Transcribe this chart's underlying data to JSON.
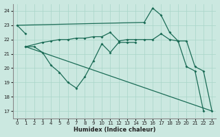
{
  "xlabel": "Humidex (Indice chaleur)",
  "bg_color": "#cbe8e0",
  "grid_color": "#a8d5c8",
  "line_color": "#1a6b55",
  "xlim": [
    -0.5,
    23.5
  ],
  "ylim": [
    16.5,
    24.5
  ],
  "yticks": [
    17,
    18,
    19,
    20,
    21,
    22,
    23,
    24
  ],
  "xticks": [
    0,
    1,
    2,
    3,
    4,
    5,
    6,
    7,
    8,
    9,
    10,
    11,
    12,
    13,
    14,
    15,
    16,
    17,
    18,
    19,
    20,
    21,
    22,
    23
  ],
  "lines": [
    {
      "segments": [
        {
          "x": [
            0,
            1,
            15
          ],
          "y": [
            23.0,
            22.4,
            23.2
          ],
          "markers": [
            true,
            true,
            false
          ]
        }
      ]
    },
    {
      "segments": [
        {
          "x": [
            1,
            2,
            3,
            4,
            5,
            6,
            7,
            8,
            9,
            10,
            11,
            12,
            13,
            14
          ],
          "y": [
            21.5,
            21.5,
            21.1,
            20.2,
            19.7,
            19.0,
            18.6,
            19.4,
            20.5,
            21.7,
            21.1,
            21.8,
            21.8,
            21.8
          ],
          "markers": [
            true,
            true,
            true,
            true,
            true,
            true,
            true,
            true,
            true,
            true,
            true,
            true,
            true,
            true
          ]
        }
      ]
    },
    {
      "segments": [
        {
          "x": [
            1,
            3,
            4,
            5,
            6,
            7,
            8,
            9,
            10,
            11,
            12,
            13,
            14,
            15,
            16,
            17,
            18,
            19
          ],
          "y": [
            21.5,
            21.8,
            21.9,
            22.0,
            22.0,
            22.1,
            22.1,
            22.2,
            22.2,
            22.5,
            21.9,
            22.0,
            22.0,
            22.0,
            22.0,
            22.4,
            22.0,
            21.9
          ],
          "markers": [
            true,
            true,
            true,
            true,
            true,
            true,
            true,
            true,
            true,
            true,
            true,
            true,
            true,
            true,
            true,
            true,
            true,
            true
          ]
        }
      ]
    },
    {
      "segments": [
        {
          "x": [
            15,
            16,
            17,
            18,
            19,
            20,
            21,
            22
          ],
          "y": [
            23.2,
            24.2,
            23.7,
            22.5,
            21.9,
            20.1,
            19.8,
            17.0
          ],
          "markers": [
            true,
            true,
            true,
            true,
            true,
            true,
            true,
            true
          ]
        }
      ]
    },
    {
      "segments": [
        {
          "x": [
            1,
            23
          ],
          "y": [
            21.5,
            17.0
          ],
          "markers": [
            false,
            false
          ]
        }
      ]
    },
    {
      "segments": [
        {
          "x": [
            19,
            20,
            21,
            22,
            23
          ],
          "y": [
            21.9,
            21.9,
            20.1,
            19.8,
            17.0
          ],
          "markers": [
            true,
            true,
            true,
            true,
            true
          ]
        }
      ]
    }
  ]
}
